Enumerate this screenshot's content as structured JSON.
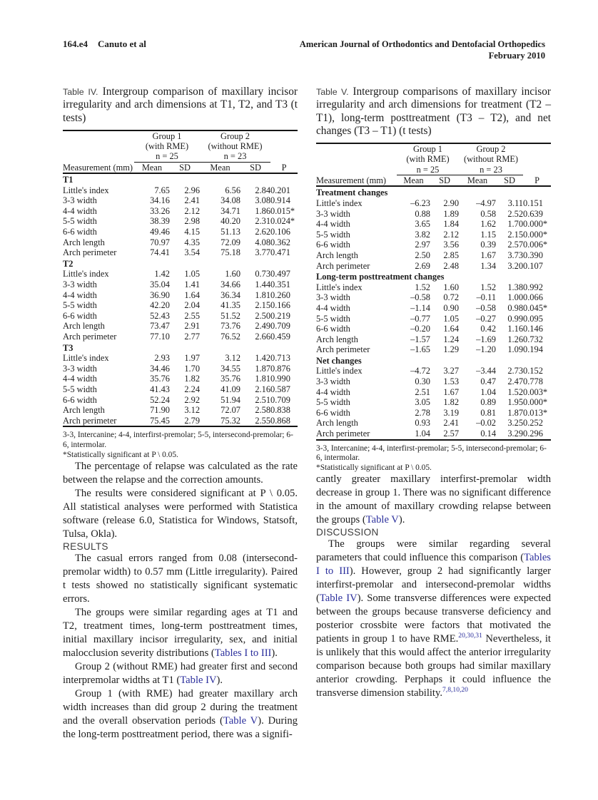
{
  "header": {
    "page_number": "164.e4",
    "authors": "Canuto et al",
    "journal": "American Journal of Orthodontics and Dentofacial Orthopedics",
    "issue": "February 2010"
  },
  "table4": {
    "label": "Table IV.",
    "caption": "Intergroup comparison of maxillary incisor irregularity and arch dimensions at T1, T2, and T3 (t tests)",
    "head": {
      "measurement": "Measurement (mm)",
      "group1": [
        "Group 1",
        "(with RME)",
        "n = 25"
      ],
      "group2": [
        "Group 2",
        "(without RME)",
        "n = 23"
      ],
      "mean": "Mean",
      "sd": "SD",
      "p": "P"
    },
    "sections": [
      {
        "name": "T1",
        "rows": [
          [
            "Little's index",
            "7.65",
            "2.96",
            "6.56",
            "2.84",
            "0.201"
          ],
          [
            "3-3 width",
            "34.16",
            "2.41",
            "34.08",
            "3.08",
            "0.914"
          ],
          [
            "4-4 width",
            "33.26",
            "2.12",
            "34.71",
            "1.86",
            "0.015*"
          ],
          [
            "5-5 width",
            "38.39",
            "2.98",
            "40.20",
            "2.31",
            "0.024*"
          ],
          [
            "6-6 width",
            "49.46",
            "4.15",
            "51.13",
            "2.62",
            "0.106"
          ],
          [
            "Arch length",
            "70.97",
            "4.35",
            "72.09",
            "4.08",
            "0.362"
          ],
          [
            "Arch perimeter",
            "74.41",
            "3.54",
            "75.18",
            "3.77",
            "0.471"
          ]
        ]
      },
      {
        "name": "T2",
        "rows": [
          [
            "Little's index",
            "1.42",
            "1.05",
            "1.60",
            "0.73",
            "0.497"
          ],
          [
            "3-3 width",
            "35.04",
            "1.41",
            "34.66",
            "1.44",
            "0.351"
          ],
          [
            "4-4 width",
            "36.90",
            "1.64",
            "36.34",
            "1.81",
            "0.260"
          ],
          [
            "5-5 width",
            "42.20",
            "2.04",
            "41.35",
            "2.15",
            "0.166"
          ],
          [
            "6-6 width",
            "52.43",
            "2.55",
            "51.52",
            "2.50",
            "0.219"
          ],
          [
            "Arch length",
            "73.47",
            "2.91",
            "73.76",
            "2.49",
            "0.709"
          ],
          [
            "Arch perimeter",
            "77.10",
            "2.77",
            "76.52",
            "2.66",
            "0.459"
          ]
        ]
      },
      {
        "name": "T3",
        "rows": [
          [
            "Little's index",
            "2.93",
            "1.97",
            "3.12",
            "1.42",
            "0.713"
          ],
          [
            "3-3 width",
            "34.46",
            "1.70",
            "34.55",
            "1.87",
            "0.876"
          ],
          [
            "4-4 width",
            "35.76",
            "1.82",
            "35.76",
            "1.81",
            "0.990"
          ],
          [
            "5-5 width",
            "41.43",
            "2.24",
            "41.09",
            "2.16",
            "0.587"
          ],
          [
            "6-6 width",
            "52.24",
            "2.92",
            "51.94",
            "2.51",
            "0.709"
          ],
          [
            "Arch length",
            "71.90",
            "3.12",
            "72.07",
            "2.58",
            "0.838"
          ],
          [
            "Arch perimeter",
            "75.45",
            "2.79",
            "75.32",
            "2.55",
            "0.868"
          ]
        ]
      }
    ],
    "footnote1": "3-3, Intercanine; 4-4, interfirst-premolar; 5-5, intersecond-premolar; 6-6, intermolar.",
    "footnote2": "*Statistically significant at P \\ 0.05."
  },
  "table5": {
    "label": "Table V.",
    "caption": "Intergroup comparisons of maxillary incisor irregularity and arch dimensions for treatment (T2 – T1), long-term posttreatment (T3 – T2), and net changes (T3 – T1) (t tests)",
    "head": {
      "measurement": "Measurement (mm)",
      "group1": [
        "Group 1",
        "(with RME)",
        "n = 25"
      ],
      "group2": [
        "Group 2",
        "(without RME)",
        "n = 23"
      ],
      "mean": "Mean",
      "sd": "SD",
      "p": "P"
    },
    "sections": [
      {
        "name": "Treatment changes",
        "rows": [
          [
            "Little's index",
            "–6.23",
            "2.90",
            "–4.97",
            "3.11",
            "0.151"
          ],
          [
            "3-3 width",
            "0.88",
            "1.89",
            "0.58",
            "2.52",
            "0.639"
          ],
          [
            "4-4 width",
            "3.65",
            "1.84",
            "1.62",
            "1.70",
            "0.000*"
          ],
          [
            "5-5 width",
            "3.82",
            "2.12",
            "1.15",
            "2.15",
            "0.000*"
          ],
          [
            "6-6 width",
            "2.97",
            "3.56",
            "0.39",
            "2.57",
            "0.006*"
          ],
          [
            "Arch length",
            "2.50",
            "2.85",
            "1.67",
            "3.73",
            "0.390"
          ],
          [
            "Arch perimeter",
            "2.69",
            "2.48",
            "1.34",
            "3.20",
            "0.107"
          ]
        ]
      },
      {
        "name": "Long-term posttreatment changes",
        "rows": [
          [
            "Little's index",
            "1.52",
            "1.60",
            "1.52",
            "1.38",
            "0.992"
          ],
          [
            "3-3 width",
            "–0.58",
            "0.72",
            "–0.11",
            "1.00",
            "0.066"
          ],
          [
            "4-4 width",
            "–1.14",
            "0.90",
            "–0.58",
            "0.98",
            "0.045*"
          ],
          [
            "5-5 width",
            "–0.77",
            "1.05",
            "–0.27",
            "0.99",
            "0.095"
          ],
          [
            "6-6 width",
            "–0.20",
            "1.64",
            "0.42",
            "1.16",
            "0.146"
          ],
          [
            "Arch length",
            "–1.57",
            "1.24",
            "–1.69",
            "1.26",
            "0.732"
          ],
          [
            "Arch perimeter",
            "–1.65",
            "1.29",
            "–1.20",
            "1.09",
            "0.194"
          ]
        ]
      },
      {
        "name": "Net changes",
        "rows": [
          [
            "Little's index",
            "–4.72",
            "3.27",
            "–3.44",
            "2.73",
            "0.152"
          ],
          [
            "3-3 width",
            "0.30",
            "1.53",
            "0.47",
            "2.47",
            "0.778"
          ],
          [
            "4-4 width",
            "2.51",
            "1.67",
            "1.04",
            "1.52",
            "0.003*"
          ],
          [
            "5-5 width",
            "3.05",
            "1.82",
            "0.89",
            "1.95",
            "0.000*"
          ],
          [
            "6-6 width",
            "2.78",
            "3.19",
            "0.81",
            "1.87",
            "0.013*"
          ],
          [
            "Arch length",
            "0.93",
            "2.41",
            "–0.02",
            "3.25",
            "0.252"
          ],
          [
            "Arch perimeter",
            "1.04",
            "2.57",
            "0.14",
            "3.29",
            "0.296"
          ]
        ]
      }
    ],
    "footnote1": "3-3, Intercanine; 4-4, interfirst-premolar; 5-5, intersecond-premolar; 6-6, intermolar.",
    "footnote2": "*Statistically significant at P \\ 0.05."
  },
  "left": {
    "p1": "The percentage of relapse was calculated as the rate between the relapse and the correction amounts.",
    "p2": "The results were considered significant at P \\ 0.05. All statistical analyses were performed with Statistica software (release 6.0, Statistica for Windows, Statsoft, Tulsa, Okla)."
  },
  "results": {
    "heading": "RESULTS",
    "p1": "The casual errors ranged from 0.08 (intersecond-premolar width) to 0.57 mm (Little irregularity). Paired t tests showed no statistically significant systematic errors.",
    "p2": {
      "pre": "The groups were similar regarding ages at T1 and T2, treatment times, long-term posttreatment times, initial maxillary incisor irregularity, sex, and initial malocclusion severity distributions (",
      "link": "Tables I to III",
      "post": ")."
    },
    "p3": {
      "pre": "Group 2 (without RME) had greater first and second interpremolar widths at T1 (",
      "link": "Table IV",
      "post": ")."
    },
    "p4": {
      "pre": "Group 1 (with RME) had greater maxillary arch width increases than did group 2 during the treatment and the overall observation periods (",
      "link": "Table V",
      "post": "). During the long-term posttreatment period, there was a signifi-"
    }
  },
  "right": {
    "cont": {
      "pre": "cantly greater maxillary interfirst-premolar width decrease in group 1. There was no significant difference in the amount of maxillary crowding relapse between the groups (",
      "link": "Table V",
      "post": ")."
    }
  },
  "discussion": {
    "heading": "DISCUSSION",
    "p1": {
      "s1": "The groups were similar regarding several parameters that could influence this comparison (",
      "link1": "Tables I to III",
      "s2": "). However, group 2 had significantly larger interfirst-premolar and intersecond-premolar widths (",
      "link2": "Table IV",
      "s3": "). Some transverse differences were expected between the groups because transverse deficiency and posterior crossbite were factors that motivated the patients in group 1 to have RME.",
      "sup1": "20,30,31",
      "s4": " Nevertheless, it is unlikely that this would affect the anterior irregularity comparison because both groups had similar maxillary anterior crowding. Perphaps it could influence the transverse dimension stability.",
      "sup2": "7,8,10,20"
    }
  }
}
